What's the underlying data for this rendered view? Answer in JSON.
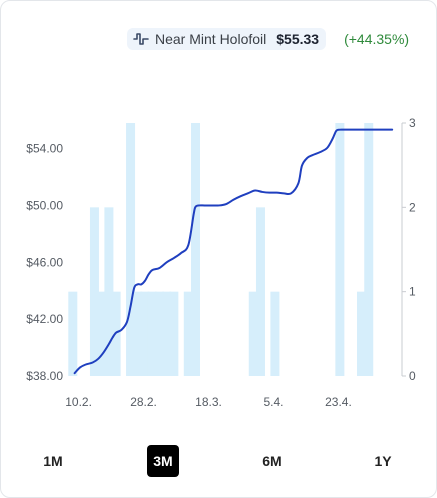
{
  "legend": {
    "icon": "pulse-line-icon",
    "name": "Near Mint Holofoil",
    "price": "$55.33",
    "change": "(+44.35%)",
    "color": "#1f3fbf",
    "change_color": "#2f8a3b"
  },
  "ranges": [
    {
      "label": "1M",
      "active": false
    },
    {
      "label": "3M",
      "active": true
    },
    {
      "label": "6M",
      "active": false
    },
    {
      "label": "1Y",
      "active": false
    }
  ],
  "chart_data": {
    "type": "line+bar",
    "x_tick_labels": [
      "10.2.",
      "28.2.",
      "18.3.",
      "5.4.",
      "23.4."
    ],
    "x_tick_days": [
      0,
      18,
      36,
      54,
      72
    ],
    "x_range_days": [
      -1,
      88.5
    ],
    "left_axis": {
      "ticks": [
        "$38.00",
        "$42.00",
        "$46.00",
        "$50.00",
        "$54.00"
      ],
      "tick_values": [
        38,
        42,
        46,
        50,
        54
      ],
      "ylim": [
        38,
        55.8
      ]
    },
    "right_axis": {
      "ticks": [
        "0",
        "1",
        "2",
        "3"
      ],
      "tick_values": [
        0,
        1,
        2,
        3
      ],
      "ylim": [
        0,
        3
      ]
    },
    "bar_color": "#d6eefb",
    "line_color": "#1f3fbf",
    "bars_days": [
      -0.5,
      5.5,
      7.5,
      9.5,
      11.5,
      15.5,
      17.5,
      19.5,
      21.5,
      23.5,
      25.5,
      27.5,
      31.5,
      33.5,
      49.5,
      51.5,
      55.5,
      73.5,
      79.5,
      81.5
    ],
    "bars_values": [
      1,
      2,
      1,
      2,
      1,
      3,
      1,
      1,
      1,
      1,
      1,
      1,
      1,
      3,
      1,
      2,
      1,
      3,
      1,
      3
    ],
    "series": [
      {
        "name": "Near Mint Holofoil",
        "x_days": [
          0,
          1.5,
          3,
          5,
          6.5,
          8,
          9.5,
          10.5,
          11.5,
          13,
          14.5,
          15.5,
          16.5,
          17.5,
          18.5,
          19.5,
          20.5,
          21.5,
          23.5,
          25.5,
          27.5,
          29.5,
          31.5,
          33,
          33.5,
          34.5,
          36,
          38,
          40,
          42,
          44,
          46,
          48,
          50,
          52,
          54,
          56,
          58,
          60,
          62,
          63,
          64.5,
          66,
          68,
          70,
          71.5,
          72.5,
          73.5,
          75,
          77,
          79,
          80,
          81,
          82.5,
          84,
          86,
          88
        ],
        "values": [
          38.2,
          38.6,
          38.8,
          38.95,
          39.2,
          39.65,
          40.25,
          40.7,
          41.05,
          41.25,
          41.8,
          42.9,
          44.2,
          44.45,
          44.45,
          44.7,
          45.15,
          45.45,
          45.6,
          46.0,
          46.3,
          46.65,
          47.2,
          49.4,
          49.9,
          50.0,
          50.0,
          50.0,
          50.0,
          50.1,
          50.4,
          50.65,
          50.85,
          51.05,
          50.95,
          50.9,
          50.9,
          50.85,
          50.85,
          51.55,
          52.8,
          53.35,
          53.55,
          53.75,
          54.05,
          54.7,
          55.25,
          55.33,
          55.33,
          55.33,
          55.33,
          55.33,
          55.33,
          55.33,
          55.33,
          55.33,
          55.33
        ]
      }
    ],
    "grid": false
  }
}
